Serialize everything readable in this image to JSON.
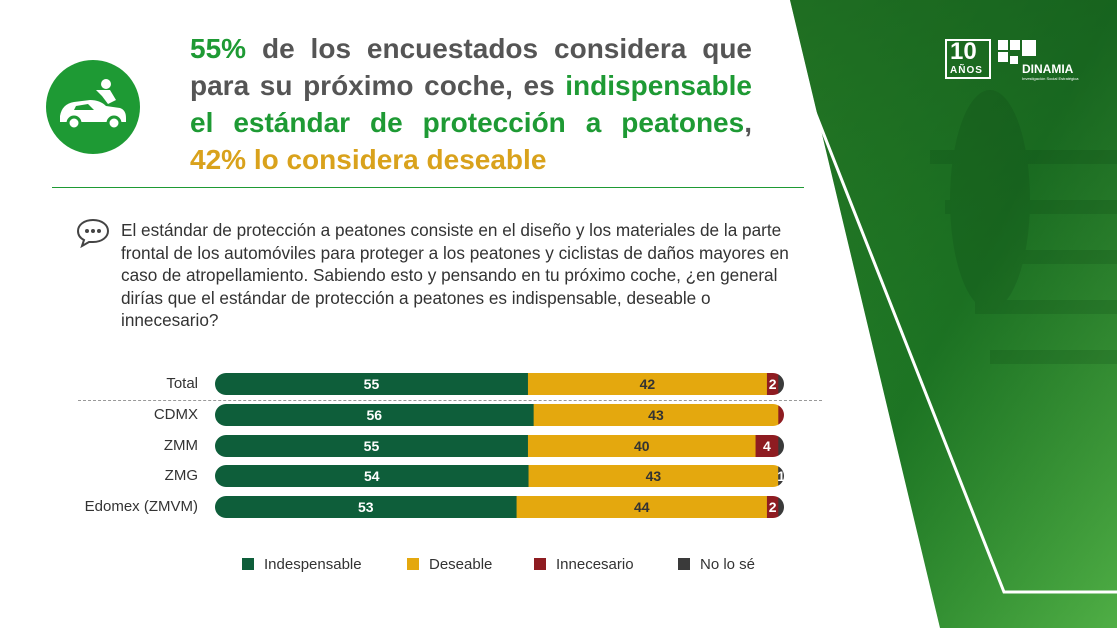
{
  "headline": {
    "part1": "55%",
    "part2": " de los encuestados considera que para su próximo coche, es ",
    "part3": "indispensable el estándar de protección a peatones",
    "part4": ", ",
    "part5": "42% lo considera deseable"
  },
  "question": "El estándar de protección a peatones consiste en el diseño y los materiales de la parte frontal de los automóviles para proteger a los peatones y ciclistas de daños mayores en caso de atropellamiento. Sabiendo esto y pensando en tu próximo coche, ¿en general dirías que el estándar de protección a peatones es indispensable, deseable o innecesario?",
  "logo": {
    "years": "10",
    "years_word": "AÑOS",
    "brand": "DINAMIA",
    "tagline": "Investigación Social Estratégica"
  },
  "colors": {
    "green": "#1e9a34",
    "indispensable": "#0e5e3a",
    "deseable": "#e4a80e",
    "innecesario": "#8e1c21",
    "no_lo_se": "#3a3a3a"
  },
  "chart_data": {
    "type": "bar",
    "orientation": "horizontal",
    "stacked": true,
    "categories": [
      "Total",
      "CDMX",
      "ZMM",
      "ZMG",
      "Edomex (ZMVM)"
    ],
    "series": [
      {
        "name": "Indespensable",
        "values": [
          55,
          56,
          55,
          54,
          53
        ]
      },
      {
        "name": "Deseable",
        "values": [
          42,
          43,
          40,
          43,
          44
        ]
      },
      {
        "name": "Innecesario",
        "values": [
          2,
          1,
          4,
          0,
          2
        ]
      },
      {
        "name": "No lo sé",
        "values": [
          1,
          0,
          1,
          1,
          1
        ]
      }
    ],
    "data_labels": [
      [
        "55",
        "42",
        "2",
        ""
      ],
      [
        "56",
        "43",
        "",
        ""
      ],
      [
        "55",
        "40",
        "4",
        ""
      ],
      [
        "54",
        "43",
        "",
        "1"
      ],
      [
        "53",
        "44",
        "2",
        ""
      ]
    ],
    "xlim": [
      0,
      100
    ],
    "legend_position": "bottom"
  }
}
